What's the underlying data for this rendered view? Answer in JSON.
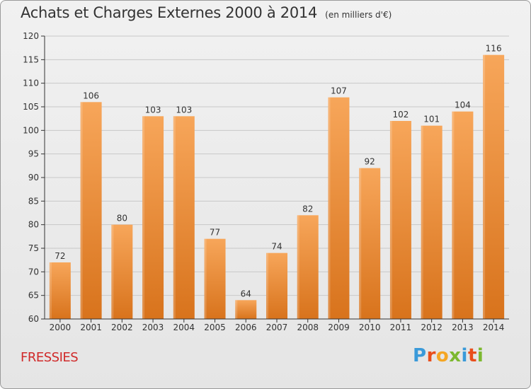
{
  "header": {
    "title": "Achats et Charges Externes 2000 à 2014",
    "unit": "(en milliers d'€)"
  },
  "footer": {
    "commune": "FRESSIES",
    "brand": "Proxiti",
    "brand_colors": [
      "#3a9ad9",
      "#e94e1b",
      "#f5a623",
      "#7cb82f",
      "#3a9ad9",
      "#e94e1b",
      "#7cb82f"
    ]
  },
  "colors": {
    "bar_light": "#f7a65a",
    "bar_dark": "#d8731c",
    "grid": "#c8c8c8",
    "axis": "#333333"
  },
  "chart_data": {
    "type": "bar",
    "title": "Achats et Charges Externes 2000 à 2014",
    "xlabel": "",
    "ylabel": "",
    "ylim": [
      60,
      120
    ],
    "yticks": [
      60,
      65,
      70,
      75,
      80,
      85,
      90,
      95,
      100,
      105,
      110,
      115,
      120
    ],
    "grid": true,
    "categories": [
      "2000",
      "2001",
      "2002",
      "2003",
      "2004",
      "2005",
      "2006",
      "2007",
      "2008",
      "2009",
      "2010",
      "2011",
      "2012",
      "2013",
      "2014"
    ],
    "values": [
      72,
      106,
      80,
      103,
      103,
      77,
      64,
      74,
      82,
      107,
      92,
      102,
      101,
      104,
      116
    ]
  }
}
